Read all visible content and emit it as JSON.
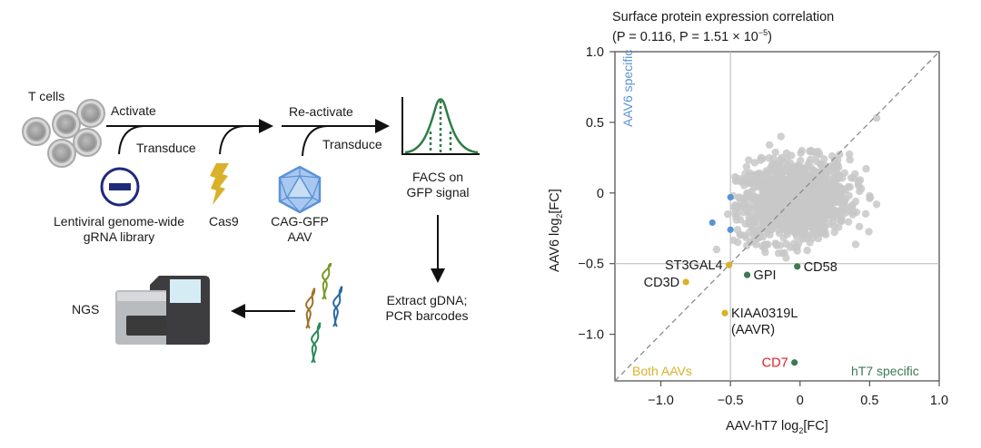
{
  "workflow": {
    "t_cells": "T cells",
    "activate": "Activate",
    "transduce_1": "Transduce",
    "reactivate": "Re-activate",
    "transduce_2": "Transduce",
    "lentiviral_line1": "Lentiviral genome-wide",
    "lentiviral_line2": "gRNA library",
    "cas9": "Cas9",
    "aav_line1": "CAG-GFP",
    "aav_line2": "AAV",
    "facs_line1": "FACS on",
    "facs_line2": "GFP signal",
    "extract_line1": "Extract gDNA;",
    "extract_line2": "PCR barcodes",
    "ngs": "NGS",
    "colors": {
      "lentivirus": "#1f2a7a",
      "cas9": "#d9b12a",
      "aav": "#5b93d6",
      "facs": "#2e7d46"
    }
  },
  "chart_data": {
    "type": "scatter",
    "title": "Surface protein expression correlation",
    "subtitle_prefix": "(P = 0.116, P = 1.51 × 10",
    "subtitle_exp": "−5",
    "subtitle_suffix": ")",
    "xlabel": "AAV-hT7 log",
    "xlabel_sub": "2",
    "xlabel_suffix": "[FC]",
    "ylabel": "AAV6 log",
    "ylabel_sub": "2",
    "ylabel_suffix": "[FC]",
    "xlim": [
      -1.33,
      1.0
    ],
    "ylim": [
      -1.33,
      1.0
    ],
    "xticks": [
      -1.0,
      -0.5,
      0,
      0.5,
      1.0
    ],
    "xtick_labels": [
      "−1.0",
      "−0.5",
      "0",
      "0.5",
      "1.0"
    ],
    "yticks": [
      -1.0,
      -0.5,
      0,
      0.5,
      1.0
    ],
    "ytick_labels": [
      "−1.0",
      "−0.5",
      "0",
      "0.5",
      "1.0"
    ],
    "reference_lines": {
      "x": -0.5,
      "y": -0.5,
      "diagonal": "y = x (dashed)"
    },
    "quadrant_labels": {
      "aav6_specific": "AAV6 specific",
      "both": "Both AAVs",
      "ht7_specific": "hT7 specific"
    },
    "colors": {
      "background_points": "#c8c8c8",
      "aav6_specific": "#5b93d6",
      "both": "#d9b12a",
      "ht7_specific": "#3d7a52",
      "cd7_label": "#e0202a"
    },
    "highlighted": [
      {
        "label": "ST3GAL4",
        "x": -0.51,
        "y": -0.51,
        "group": "both",
        "label_side": "left"
      },
      {
        "label": "CD3D",
        "x": -0.82,
        "y": -0.63,
        "group": "both",
        "label_side": "left"
      },
      {
        "label": "KIAA0319L\n(AAVR)",
        "x": -0.54,
        "y": -0.85,
        "group": "both",
        "label_side": "right"
      },
      {
        "label": "GPI",
        "x": -0.38,
        "y": -0.58,
        "group": "ht7_specific",
        "label_side": "right"
      },
      {
        "label": "CD58",
        "x": -0.02,
        "y": -0.52,
        "group": "ht7_specific",
        "label_side": "right"
      },
      {
        "label": "CD7",
        "x": -0.04,
        "y": -1.2,
        "group": "ht7_specific",
        "label_side": "left",
        "label_color": "cd7_label"
      },
      {
        "label": "",
        "x": -0.5,
        "y": -0.03,
        "group": "aav6_specific"
      },
      {
        "label": "",
        "x": -0.63,
        "y": -0.21,
        "group": "aav6_specific"
      },
      {
        "label": "",
        "x": -0.5,
        "y": -0.26,
        "group": "aav6_specific"
      }
    ],
    "background_summary": {
      "description": "Dense gray cloud of surface proteins centered near (-0.05, -0.05)",
      "x_center": -0.05,
      "y_center": -0.05,
      "x_spread": 0.2,
      "y_spread": 0.14,
      "count_approx": 1200
    },
    "background_outliers": [
      [
        0.55,
        0.53
      ],
      [
        -0.22,
        0.34
      ],
      [
        0.42,
        0.08
      ],
      [
        0.5,
        -0.02
      ],
      [
        0.55,
        -0.08
      ],
      [
        -0.42,
        0.1
      ],
      [
        -0.36,
        0.14
      ],
      [
        -0.48,
        -0.02
      ],
      [
        -0.52,
        -0.15
      ],
      [
        -0.4,
        -0.3
      ],
      [
        -0.25,
        -0.42
      ],
      [
        -0.1,
        -0.46
      ],
      [
        -0.02,
        -0.41
      ],
      [
        0.3,
        -0.2
      ],
      [
        0.25,
        0.23
      ],
      [
        0.08,
        0.3
      ],
      [
        -0.28,
        0.25
      ],
      [
        -0.6,
        -0.4
      ],
      [
        0.35,
        -0.12
      ],
      [
        0.44,
        0.03
      ]
    ]
  }
}
